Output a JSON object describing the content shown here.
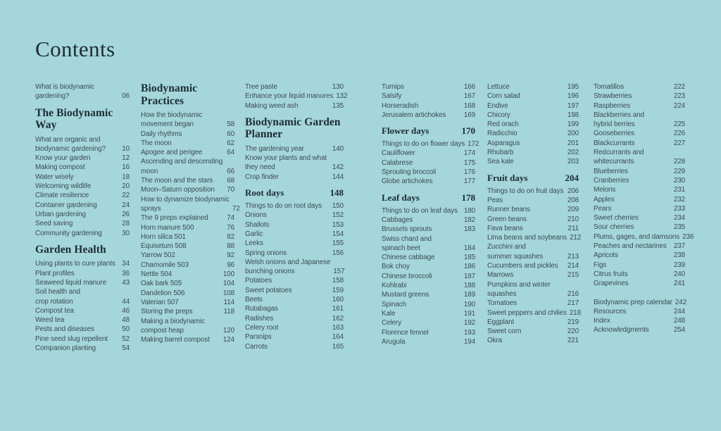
{
  "page": {
    "title": "Contents",
    "background_color": "#a4d6dc",
    "heading_color": "#1d2b33",
    "body_text_color": "#3e4b52"
  },
  "columns": [
    {
      "items": [
        {
          "type": "entry",
          "label": "What is biodynamic\ngardening?",
          "page": "06"
        },
        {
          "type": "heading",
          "label": "The Biodynamic\nWay"
        },
        {
          "type": "entry",
          "label": "What are organic and\nbiodynamic gardening?",
          "page": "10"
        },
        {
          "type": "entry",
          "label": "Know your garden",
          "page": "12"
        },
        {
          "type": "entry",
          "label": "Making compost",
          "page": "16"
        },
        {
          "type": "entry",
          "label": "Water wisely",
          "page": "18"
        },
        {
          "type": "entry",
          "label": "Welcoming wildlife",
          "page": "20"
        },
        {
          "type": "entry",
          "label": "Climate resilience",
          "page": "22"
        },
        {
          "type": "entry",
          "label": "Container gardening",
          "page": "24"
        },
        {
          "type": "entry",
          "label": "Urban gardening",
          "page": "26"
        },
        {
          "type": "entry",
          "label": "Seed saving",
          "page": "28"
        },
        {
          "type": "entry",
          "label": "Community gardening",
          "page": "30"
        },
        {
          "type": "heading",
          "label": "Garden Health"
        },
        {
          "type": "entry",
          "label": "Using plants to cure plants",
          "page": "34"
        },
        {
          "type": "entry",
          "label": "Plant profiles",
          "page": "36"
        },
        {
          "type": "entry",
          "label": "Seaweed liquid manure",
          "page": "43"
        },
        {
          "type": "entry",
          "label": "Soil health and\ncrop rotation",
          "page": "44"
        },
        {
          "type": "entry",
          "label": "Compost tea",
          "page": "46"
        },
        {
          "type": "entry",
          "label": "Weed tea",
          "page": "48"
        },
        {
          "type": "entry",
          "label": "Pests and diseases",
          "page": "50"
        },
        {
          "type": "entry",
          "label": "Pine seed slug repellent",
          "page": "52"
        },
        {
          "type": "entry",
          "label": "Companion planting",
          "page": "54"
        }
      ]
    },
    {
      "items": [
        {
          "type": "heading",
          "label": "Biodynamic\nPractices"
        },
        {
          "type": "entry",
          "label": "How the biodynamic\nmovement began",
          "page": "58"
        },
        {
          "type": "entry",
          "label": "Daily rhythms",
          "page": "60"
        },
        {
          "type": "entry",
          "label": "The moon",
          "page": "62"
        },
        {
          "type": "entry",
          "label": "Apogee and perigee",
          "page": "64"
        },
        {
          "type": "entry",
          "label": "Ascending and descending\nmoon",
          "page": "66"
        },
        {
          "type": "entry",
          "label": "The moon and the stars",
          "page": "68"
        },
        {
          "type": "entry",
          "label": "Moon–Saturn opposition",
          "page": "70"
        },
        {
          "type": "entry",
          "label": "How to dynamize biodynamic\nsprays",
          "page": "72"
        },
        {
          "type": "entry",
          "label": "The 9 preps explained",
          "page": "74"
        },
        {
          "type": "entry",
          "label": "Horn manure 500",
          "page": "76"
        },
        {
          "type": "entry",
          "label": "Horn silica 501",
          "page": "82"
        },
        {
          "type": "entry",
          "label": "Equisetum 508",
          "page": "88"
        },
        {
          "type": "entry",
          "label": "Yarrow 502",
          "page": "92"
        },
        {
          "type": "entry",
          "label": "Chamomile 503",
          "page": "96"
        },
        {
          "type": "entry",
          "label": "Nettle 504",
          "page": "100"
        },
        {
          "type": "entry",
          "label": "Oak bark 505",
          "page": "104"
        },
        {
          "type": "entry",
          "label": "Dandelion 506",
          "page": "108"
        },
        {
          "type": "entry",
          "label": "Valerian 507",
          "page": "114"
        },
        {
          "type": "entry",
          "label": "Storing the preps",
          "page": "118"
        },
        {
          "type": "entry",
          "label": "Making a biodynamic\ncompost heap",
          "page": "120"
        },
        {
          "type": "entry",
          "label": "Making barrel compost",
          "page": "124"
        }
      ]
    },
    {
      "items": [
        {
          "type": "entry",
          "label": "Tree paste",
          "page": "130"
        },
        {
          "type": "entry",
          "label": "Enhance your liquid manures",
          "page": "132"
        },
        {
          "type": "entry",
          "label": "Making weed ash",
          "page": "135"
        },
        {
          "type": "heading",
          "label": "Biodynamic Garden\nPlanner"
        },
        {
          "type": "entry",
          "label": "The gardening year",
          "page": "140"
        },
        {
          "type": "entry",
          "label": "Know your plants and what\nthey need",
          "page": "142"
        },
        {
          "type": "entry",
          "label": "Crop finder",
          "page": "144"
        },
        {
          "type": "subheading",
          "label": "Root days",
          "page": "148"
        },
        {
          "type": "entry",
          "label": "Things to do on root days",
          "page": "150"
        },
        {
          "type": "entry",
          "label": "Onions",
          "page": "152"
        },
        {
          "type": "entry",
          "label": "Shallots",
          "page": "153"
        },
        {
          "type": "entry",
          "label": "Garlic",
          "page": "154"
        },
        {
          "type": "entry",
          "label": "Leeks",
          "page": "155"
        },
        {
          "type": "entry",
          "label": "Spring onions",
          "page": "156"
        },
        {
          "type": "entry",
          "label": "Welsh onions and Japanese\nbunching onions",
          "page": "157"
        },
        {
          "type": "entry",
          "label": "Potatoes",
          "page": "158"
        },
        {
          "type": "entry",
          "label": "Sweet potatoes",
          "page": "159"
        },
        {
          "type": "entry",
          "label": "Beets",
          "page": "160"
        },
        {
          "type": "entry",
          "label": "Rutabagas",
          "page": "161"
        },
        {
          "type": "entry",
          "label": "Radishes",
          "page": "162"
        },
        {
          "type": "entry",
          "label": "Celery root",
          "page": "163"
        },
        {
          "type": "entry",
          "label": "Parsnips",
          "page": "164"
        },
        {
          "type": "entry",
          "label": "Carrots",
          "page": "165"
        }
      ]
    },
    {
      "items": [
        {
          "type": "entry",
          "label": "Turnips",
          "page": "166"
        },
        {
          "type": "entry",
          "label": "Salsify",
          "page": "167"
        },
        {
          "type": "entry",
          "label": "Horseradish",
          "page": "168"
        },
        {
          "type": "entry",
          "label": "Jerusalem artichokes",
          "page": "169"
        },
        {
          "type": "subheading",
          "label": "Flower days",
          "page": "170"
        },
        {
          "type": "entry",
          "label": "Things to do on flower days",
          "page": "172"
        },
        {
          "type": "entry",
          "label": "Cauliflower",
          "page": "174"
        },
        {
          "type": "entry",
          "label": "Calabrese",
          "page": "175"
        },
        {
          "type": "entry",
          "label": "Sprouting broccoli",
          "page": "176"
        },
        {
          "type": "entry",
          "label": "Globe artichokes",
          "page": "177"
        },
        {
          "type": "subheading",
          "label": "Leaf days",
          "page": "178"
        },
        {
          "type": "entry",
          "label": "Things to do on leaf days",
          "page": "180"
        },
        {
          "type": "entry",
          "label": "Cabbages",
          "page": "182"
        },
        {
          "type": "entry",
          "label": "Brussels sprouts",
          "page": "183"
        },
        {
          "type": "entry",
          "label": "Swiss chard and\nspinach beet",
          "page": "184"
        },
        {
          "type": "entry",
          "label": "Chinese cabbage",
          "page": "185"
        },
        {
          "type": "entry",
          "label": "Bok choy",
          "page": "186"
        },
        {
          "type": "entry",
          "label": "Chinese broccoli",
          "page": "187"
        },
        {
          "type": "entry",
          "label": "Kohlrabi",
          "page": "188"
        },
        {
          "type": "entry",
          "label": "Mustard greens",
          "page": "189"
        },
        {
          "type": "entry",
          "label": "Spinach",
          "page": "190"
        },
        {
          "type": "entry",
          "label": "Kale",
          "page": "191"
        },
        {
          "type": "entry",
          "label": "Celery",
          "page": "192"
        },
        {
          "type": "entry",
          "label": "Florence fennel",
          "page": "193"
        },
        {
          "type": "entry",
          "label": "Arugula",
          "page": "194"
        }
      ]
    },
    {
      "items": [
        {
          "type": "entry",
          "label": "Lettuce",
          "page": "195"
        },
        {
          "type": "entry",
          "label": "Corn salad",
          "page": "196"
        },
        {
          "type": "entry",
          "label": "Endive",
          "page": "197"
        },
        {
          "type": "entry",
          "label": "Chicory",
          "page": "198"
        },
        {
          "type": "entry",
          "label": "Red orach",
          "page": "199"
        },
        {
          "type": "entry",
          "label": "Radicchio",
          "page": "200"
        },
        {
          "type": "entry",
          "label": "Asparagus",
          "page": "201"
        },
        {
          "type": "entry",
          "label": "Rhubarb",
          "page": "202"
        },
        {
          "type": "entry",
          "label": "Sea kale",
          "page": "203"
        },
        {
          "type": "subheading",
          "label": "Fruit days",
          "page": "204"
        },
        {
          "type": "entry",
          "label": "Things to do on fruit days",
          "page": "206"
        },
        {
          "type": "entry",
          "label": "Peas",
          "page": "208"
        },
        {
          "type": "entry",
          "label": "Runner beans",
          "page": "209"
        },
        {
          "type": "entry",
          "label": "Green beans",
          "page": "210"
        },
        {
          "type": "entry",
          "label": "Fava beans",
          "page": "211"
        },
        {
          "type": "entry",
          "label": "Lima beans and soybeans",
          "page": "212"
        },
        {
          "type": "entry",
          "label": "Zucchini and\nsummer squashes",
          "page": "213"
        },
        {
          "type": "entry",
          "label": "Cucumbers and pickles",
          "page": "214"
        },
        {
          "type": "entry",
          "label": "Marrows",
          "page": "215"
        },
        {
          "type": "entry",
          "label": "Pumpkins and winter\nsquashes",
          "page": "216"
        },
        {
          "type": "entry",
          "label": "Tomatoes",
          "page": "217"
        },
        {
          "type": "entry",
          "label": "Sweet peppers and chilies",
          "page": "218"
        },
        {
          "type": "entry",
          "label": "Eggplant",
          "page": "219"
        },
        {
          "type": "entry",
          "label": "Sweet corn",
          "page": "220"
        },
        {
          "type": "entry",
          "label": "Okra",
          "page": "221"
        }
      ]
    },
    {
      "items": [
        {
          "type": "entry",
          "label": "Tomatillos",
          "page": "222"
        },
        {
          "type": "entry",
          "label": "Strawberries",
          "page": "223"
        },
        {
          "type": "entry",
          "label": "Raspberries",
          "page": "224"
        },
        {
          "type": "entry",
          "label": "Blackberries and\nhybrid berries",
          "page": "225"
        },
        {
          "type": "entry",
          "label": "Gooseberries",
          "page": "226"
        },
        {
          "type": "entry",
          "label": "Blackcurrants",
          "page": "227"
        },
        {
          "type": "entry",
          "label": "Redcurrants and\nwhitecurrants",
          "page": "228"
        },
        {
          "type": "entry",
          "label": "Blueberries",
          "page": "229"
        },
        {
          "type": "entry",
          "label": "Cranberries",
          "page": "230"
        },
        {
          "type": "entry",
          "label": "Melons",
          "page": "231"
        },
        {
          "type": "entry",
          "label": "Apples",
          "page": "232"
        },
        {
          "type": "entry",
          "label": "Pears",
          "page": "233"
        },
        {
          "type": "entry",
          "label": "Sweet cherries",
          "page": "234"
        },
        {
          "type": "entry",
          "label": "Sour cherries",
          "page": "235"
        },
        {
          "type": "entry",
          "label": "Plums, gages, and damsons",
          "page": "236"
        },
        {
          "type": "entry",
          "label": "Peaches and nectarines",
          "page": "237"
        },
        {
          "type": "entry",
          "label": "Apricots",
          "page": "238"
        },
        {
          "type": "entry",
          "label": "Figs",
          "page": "239"
        },
        {
          "type": "entry",
          "label": "Citrus fruits",
          "page": "240"
        },
        {
          "type": "entry",
          "label": "Grapevines",
          "page": "241"
        },
        {
          "type": "spacer"
        },
        {
          "type": "entry",
          "label": "Biodynamic prep calendar",
          "page": "242"
        },
        {
          "type": "entry",
          "label": "Resources",
          "page": "244"
        },
        {
          "type": "entry",
          "label": "Index",
          "page": "248"
        },
        {
          "type": "entry",
          "label": "Acknowledgments",
          "page": "254"
        }
      ]
    }
  ]
}
